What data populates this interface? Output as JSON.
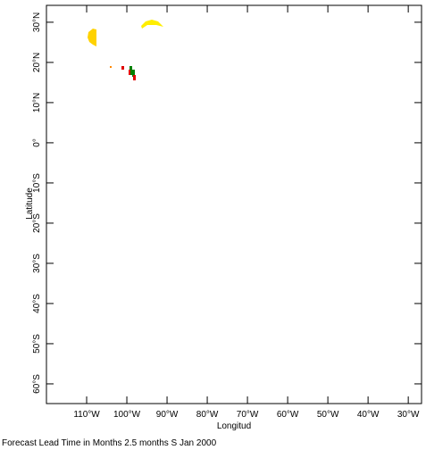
{
  "chart_data": {
    "type": "map",
    "x_label": "Longitud",
    "y_label": "Latitude",
    "footer": "Forecast Lead Time in Months 2.5 months S Jan 2000",
    "xlim": [
      -120,
      -26.7
    ],
    "ylim": [
      -64.9,
      34.2
    ],
    "xticks": [
      {
        "value": -110,
        "label": "110°W"
      },
      {
        "value": -100,
        "label": "100°W"
      },
      {
        "value": -90,
        "label": "90°W"
      },
      {
        "value": -80,
        "label": "80°W"
      },
      {
        "value": -70,
        "label": "70°W"
      },
      {
        "value": -60,
        "label": "60°W"
      },
      {
        "value": -50,
        "label": "50°W"
      },
      {
        "value": -40,
        "label": "40°W"
      },
      {
        "value": -30,
        "label": "30°W"
      }
    ],
    "yticks": [
      {
        "value": 30,
        "label": "30°N"
      },
      {
        "value": 20,
        "label": "20°N"
      },
      {
        "value": 10,
        "label": "10°N"
      },
      {
        "value": 0,
        "label": "0°"
      },
      {
        "value": -10,
        "label": "10°S"
      },
      {
        "value": -20,
        "label": "20°S"
      },
      {
        "value": -30,
        "label": "30°S"
      },
      {
        "value": -40,
        "label": "40°S"
      },
      {
        "value": -50,
        "label": "50°S"
      },
      {
        "value": -60,
        "label": "60°S"
      }
    ]
  }
}
